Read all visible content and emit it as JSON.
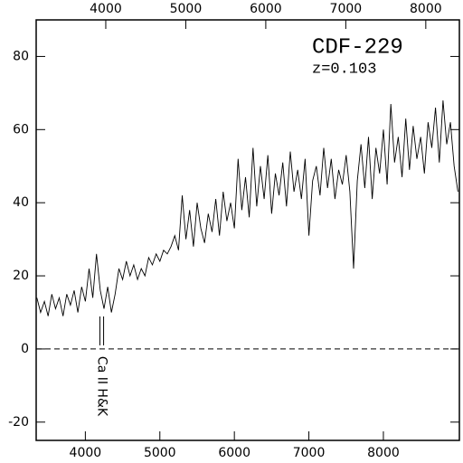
{
  "chart_data": {
    "type": "line",
    "title": "CDF-229",
    "subtitle": "z=0.103",
    "annotations": [
      {
        "text": "Ca II H&K",
        "x": 4220
      }
    ],
    "marker_lines": [
      4195,
      4245
    ],
    "reference_line": 0,
    "color": "#000000",
    "x": [
      3350,
      3400,
      3450,
      3500,
      3550,
      3600,
      3650,
      3700,
      3750,
      3800,
      3850,
      3900,
      3950,
      4000,
      4050,
      4100,
      4150,
      4200,
      4250,
      4300,
      4350,
      4400,
      4450,
      4500,
      4550,
      4600,
      4650,
      4700,
      4750,
      4800,
      4850,
      4900,
      4950,
      5000,
      5050,
      5100,
      5150,
      5200,
      5250,
      5300,
      5350,
      5400,
      5450,
      5500,
      5550,
      5600,
      5650,
      5700,
      5750,
      5800,
      5850,
      5900,
      5950,
      6000,
      6050,
      6100,
      6150,
      6200,
      6250,
      6300,
      6350,
      6400,
      6450,
      6500,
      6550,
      6600,
      6650,
      6700,
      6750,
      6800,
      6850,
      6900,
      6950,
      7000,
      7050,
      7100,
      7150,
      7200,
      7250,
      7300,
      7350,
      7400,
      7450,
      7500,
      7550,
      7600,
      7650,
      7700,
      7750,
      7800,
      7850,
      7900,
      7950,
      8000,
      8050,
      8100,
      8150,
      8200,
      8250,
      8300,
      8350,
      8400,
      8450,
      8500,
      8550,
      8600,
      8650,
      8700,
      8750,
      8800,
      8850,
      8900,
      8950,
      9000
    ],
    "values": [
      14,
      10,
      13,
      9,
      15,
      11,
      14,
      9,
      15,
      12,
      16,
      10,
      17,
      13,
      22,
      14,
      26,
      16,
      11,
      17,
      10,
      15,
      22,
      19,
      24,
      20,
      23,
      19,
      22,
      20,
      25,
      23,
      26,
      24,
      27,
      26,
      28,
      31,
      27,
      42,
      30,
      38,
      28,
      40,
      33,
      29,
      37,
      32,
      41,
      31,
      43,
      35,
      40,
      33,
      52,
      38,
      47,
      36,
      55,
      39,
      50,
      41,
      53,
      37,
      48,
      42,
      51,
      39,
      54,
      43,
      49,
      41,
      52,
      31,
      46,
      50,
      42,
      55,
      44,
      52,
      41,
      49,
      45,
      53,
      43,
      22,
      46,
      56,
      44,
      58,
      41,
      55,
      48,
      60,
      45,
      67,
      51,
      58,
      47,
      63,
      49,
      61,
      52,
      58,
      48,
      62,
      55,
      66,
      51,
      68,
      56,
      62,
      50,
      43
    ],
    "xlim": [
      3340,
      9020
    ],
    "xticks": [
      4000,
      5000,
      6000,
      7000,
      8000
    ],
    "x2lim": [
      3130,
      8420
    ],
    "x2ticks": [
      4000,
      5000,
      6000,
      7000,
      8000
    ],
    "ylim": [
      -25,
      90
    ],
    "yticks": [
      -20,
      0,
      20,
      40,
      60,
      80
    ]
  }
}
